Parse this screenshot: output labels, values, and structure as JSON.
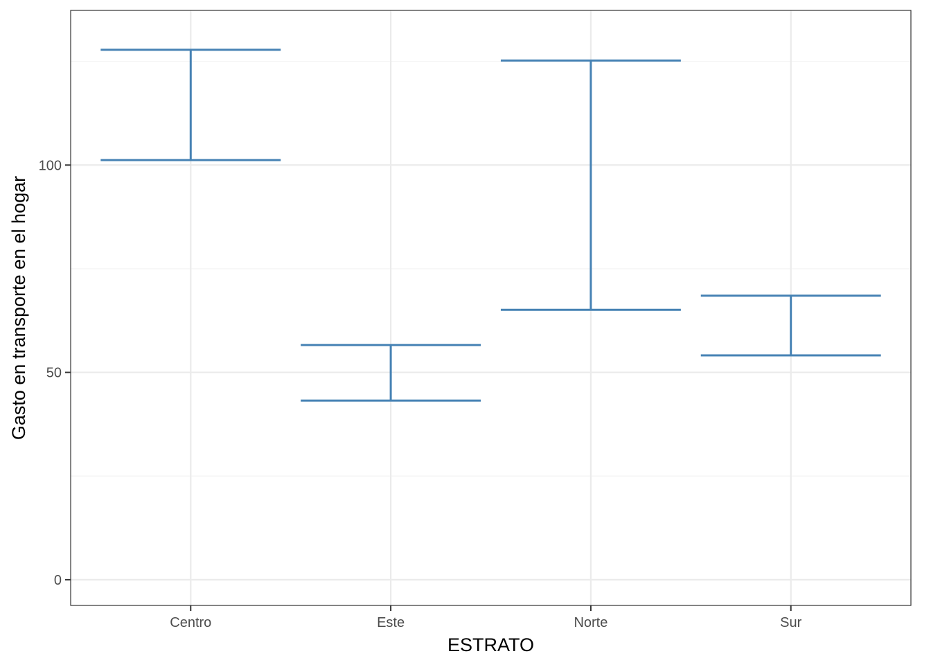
{
  "chart_data": {
    "type": "errorbar",
    "title": "",
    "xlabel": "ESTRATO",
    "ylabel": "Gasto en transporte en el hogar",
    "categories": [
      "Centro",
      "Este",
      "Norte",
      "Sur"
    ],
    "series": [
      {
        "lower": [
          101.2,
          43.2,
          65.1,
          54.1
        ],
        "upper": [
          127.8,
          56.6,
          125.2,
          68.5
        ]
      }
    ],
    "ylim": [
      -6.2,
      137.3
    ],
    "yticks": [
      0,
      50,
      100
    ],
    "grid": true,
    "colors": {
      "errorbar": "#4682b4",
      "grid_major": "#ebebeb",
      "grid_minor": "#f2f2f2",
      "panel_border": "#333333"
    }
  }
}
